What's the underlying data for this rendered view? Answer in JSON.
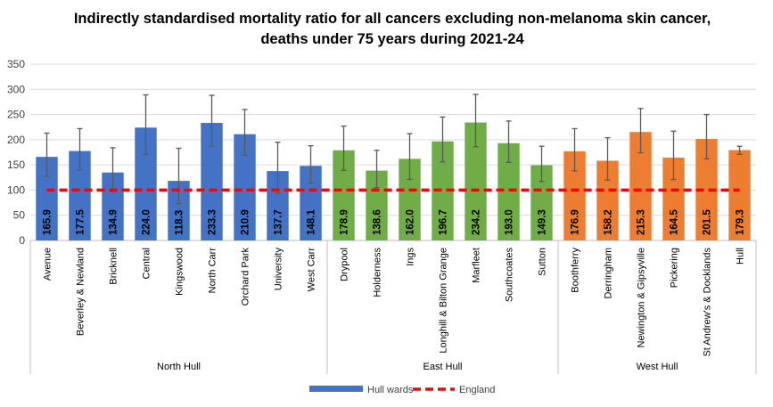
{
  "chart_data": {
    "type": "bar",
    "title": "Indirectly standardised  mortality ratio for all cancers excluding non-melanoma skin cancer, deaths under 75 years during 2021-24",
    "xlabel": "",
    "ylabel": "",
    "ylim": [
      0,
      350
    ],
    "yticks": [
      0,
      50,
      100,
      150,
      200,
      250,
      300,
      350
    ],
    "grid": true,
    "legend_placement": "bottom",
    "groups": [
      {
        "name": "North Hull",
        "color": "#4472C4",
        "categories": [
          "Avenue",
          "Beverley & Newland",
          "Bricknell",
          "Central",
          "Kingswood",
          "North Carr",
          "Orchard Park",
          "University",
          "West Carr"
        ],
        "values": [
          165.9,
          177.5,
          134.9,
          224.0,
          118.3,
          233.3,
          210.9,
          137.7,
          148.1
        ],
        "ci_lower": [
          127,
          140,
          97,
          171,
          73,
          187,
          169,
          94,
          114
        ],
        "ci_upper": [
          213,
          222,
          184,
          289,
          183,
          288,
          260,
          195,
          188
        ]
      },
      {
        "name": "East Hull",
        "color": "#70AD47",
        "categories": [
          "Drypool",
          "Holderness",
          "Ings",
          "Longhill & Bilton Grange",
          "Marfleet",
          "Southcoates",
          "Sutton"
        ],
        "values": [
          178.9,
          138.6,
          162.0,
          196.7,
          234.2,
          193.0,
          149.3
        ],
        "ci_lower": [
          139,
          105,
          121,
          156,
          186,
          155,
          117
        ],
        "ci_upper": [
          227,
          179,
          212,
          245,
          290,
          237,
          187
        ]
      },
      {
        "name": "West Hull",
        "color": "#ED7D31",
        "categories": [
          "Boothferry",
          "Derringham",
          "Newington & Gipsyville",
          "Pickering",
          "St Andrew's & Docklands",
          "Hull"
        ],
        "values": [
          176.9,
          158.2,
          215.3,
          164.5,
          201.5,
          179.3
        ],
        "ci_lower": [
          138,
          120,
          174,
          121,
          162,
          171
        ],
        "ci_upper": [
          222,
          204,
          262,
          217,
          250,
          187
        ]
      }
    ],
    "reference_line": {
      "name": "England",
      "value": 100,
      "color": "#FF0000"
    },
    "legend": [
      {
        "label": "Hull wards",
        "color": "#4472C4"
      },
      {
        "label": "England",
        "color": "#FF0000"
      }
    ]
  }
}
